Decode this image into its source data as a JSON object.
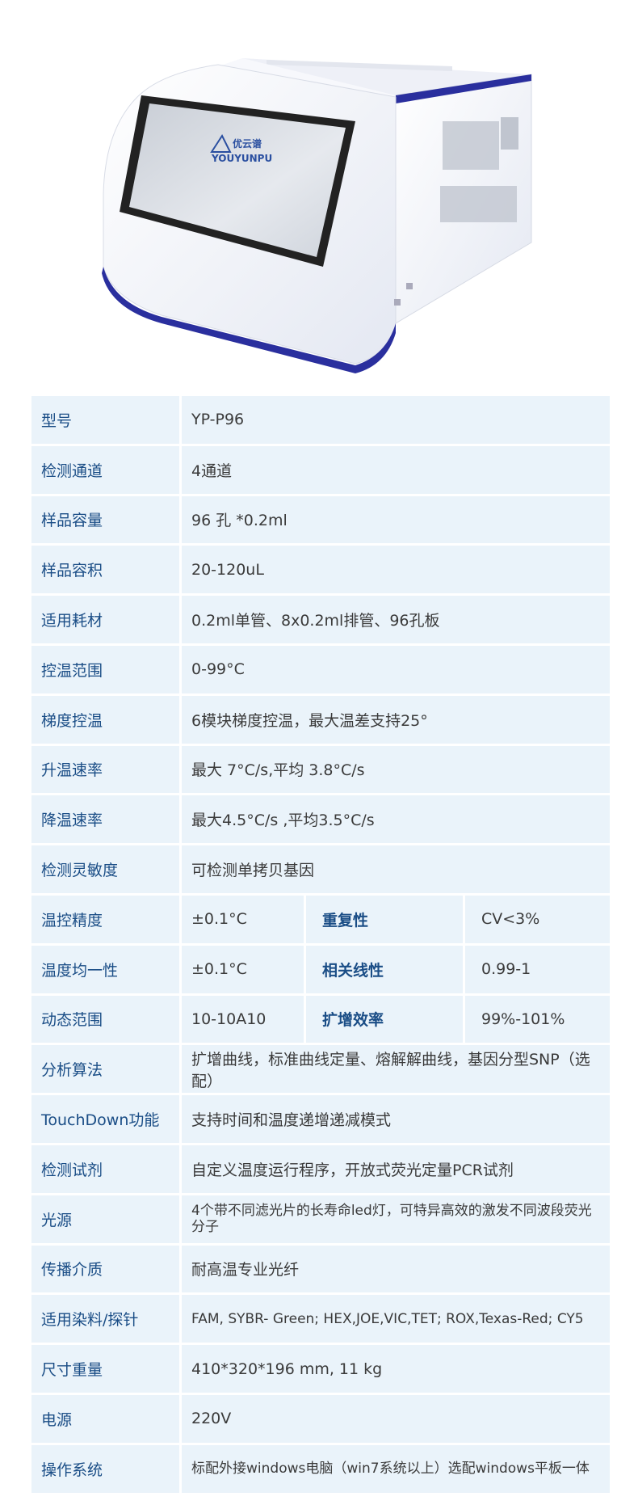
{
  "device": {
    "brand_logo": "YOUYUNPU",
    "brand_cn": "优云谱",
    "colors": {
      "body": "#f3f5fb",
      "accent": "#2a2f9e",
      "screen": "#d7dce4"
    }
  },
  "specs": [
    {
      "label": "型号",
      "value": "YP-P96"
    },
    {
      "label": "检测通道",
      "value": "4通道"
    },
    {
      "label": "样品容量",
      "value": "96 孔 *0.2ml"
    },
    {
      "label": "样品容积",
      "value": "20-120uL"
    },
    {
      "label": "适用耗材",
      "value": "0.2ml单管、8x0.2ml排管、96孔板"
    },
    {
      "label": "控温范围",
      "value": "0-99°C"
    },
    {
      "label": "梯度控温",
      "value": "6模块梯度控温，最大温差支持25°"
    },
    {
      "label": "升温速率",
      "value": "最大 7°C/s,平均 3.8°C/s"
    },
    {
      "label": "降温速率",
      "value": "最大4.5°C/s ,平均3.5°C/s"
    },
    {
      "label": "检测灵敏度",
      "value": "可检测单拷贝基因"
    }
  ],
  "split_specs": [
    {
      "label": "温控精度",
      "value": "±0.1°C",
      "label2": "重复性",
      "value2": "CV<3%"
    },
    {
      "label": "温度均一性",
      "value": "±0.1°C",
      "label2": "相关线性",
      "value2": "0.99-1"
    },
    {
      "label": "动态范围",
      "value": "10-10A10",
      "label2": "扩增效率",
      "value2": "99%-101%"
    }
  ],
  "specs2": [
    {
      "label": "分析算法",
      "value": "扩增曲线，标准曲线定量、熔解解曲线，基因分型SNP（选配）"
    },
    {
      "label": "TouchDown功能",
      "value": "支持时间和温度递增递减模式"
    },
    {
      "label": "检测试剂",
      "value": "自定义温度运行程序，开放式荧光定量PCR试剂"
    },
    {
      "label": "光源",
      "value": "4个带不同滤光片的长寿命led灯，可特异高效的激发不同波段荧光分子"
    },
    {
      "label": "传播介质",
      "value": "耐高温专业光纤"
    },
    {
      "label": "适用染料/探针",
      "value": "FAM, SYBR- Green; HEX,JOE,VIC,TET; ROX,Texas-Red; CY5"
    },
    {
      "label": "尺寸重量",
      "value": "410*320*196 mm, 11 kg"
    },
    {
      "label": "电源",
      "value": "220V"
    },
    {
      "label": "操作系统",
      "value": "标配外接windows电脑（win7系统以上）选配windows平板一体"
    }
  ]
}
